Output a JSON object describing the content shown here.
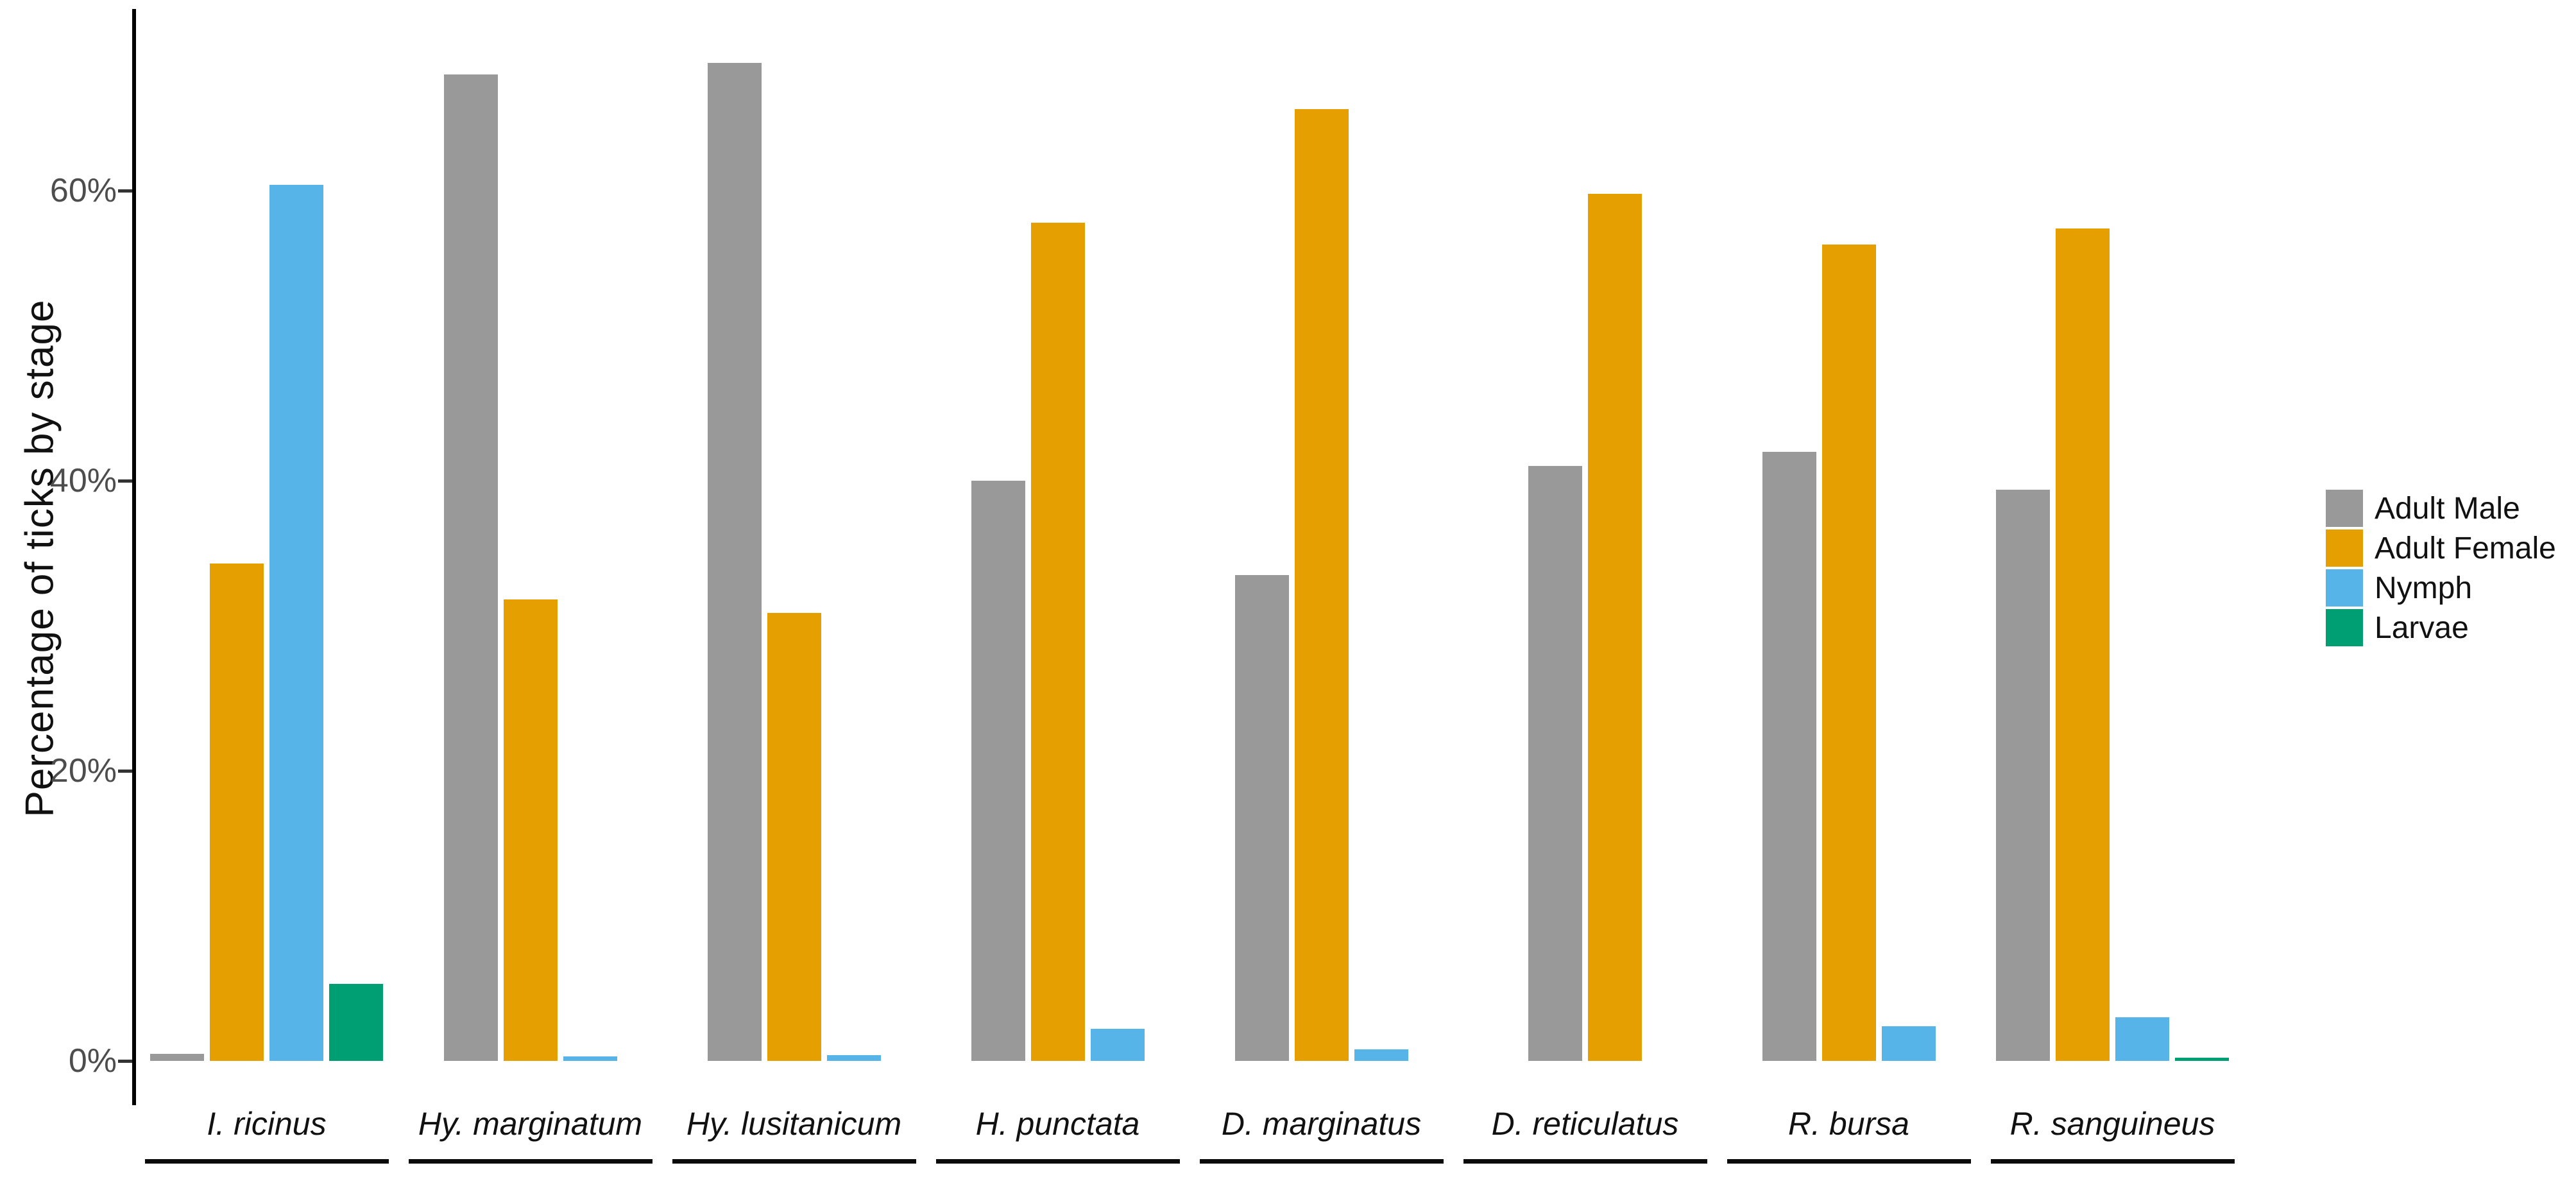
{
  "chart_data": {
    "type": "bar",
    "title": "",
    "ylabel": "Percentage of ticks by stage",
    "xlabel": "",
    "categories": [
      "I. ricinus",
      "Hy. marginatum",
      "Hy. lusitanicum",
      "H. punctata",
      "D. marginatus",
      "D. reticulatus",
      "R. bursa",
      "R. sanguineus"
    ],
    "series": [
      {
        "name": "Adult Male",
        "color": "#999999",
        "values": [
          0.5,
          68.0,
          68.8,
          40.0,
          33.5,
          41.0,
          42.0,
          39.4
        ]
      },
      {
        "name": "Adult Female",
        "color": "#E69F00",
        "values": [
          34.3,
          31.8,
          30.9,
          57.8,
          65.6,
          59.8,
          56.3,
          57.4
        ]
      },
      {
        "name": "Nymph",
        "color": "#56B4E9",
        "values": [
          60.4,
          0.3,
          0.4,
          2.2,
          0.8,
          0,
          2.4,
          3.0
        ]
      },
      {
        "name": "Larvae",
        "color": "#009E73",
        "values": [
          5.3,
          0,
          0,
          0,
          0,
          0,
          0,
          0.2
        ]
      }
    ],
    "yticks": [
      {
        "label": "0%",
        "value": 0
      },
      {
        "label": "20%",
        "value": 20
      },
      {
        "label": "40%",
        "value": 40
      },
      {
        "label": "60%",
        "value": 60
      }
    ],
    "ylim": [
      0,
      72
    ],
    "grid": false,
    "legend_position": "right",
    "colors": {
      "axis_line": "#000000",
      "tick_text": "#4d4d4d",
      "label_text": "#111111"
    }
  }
}
